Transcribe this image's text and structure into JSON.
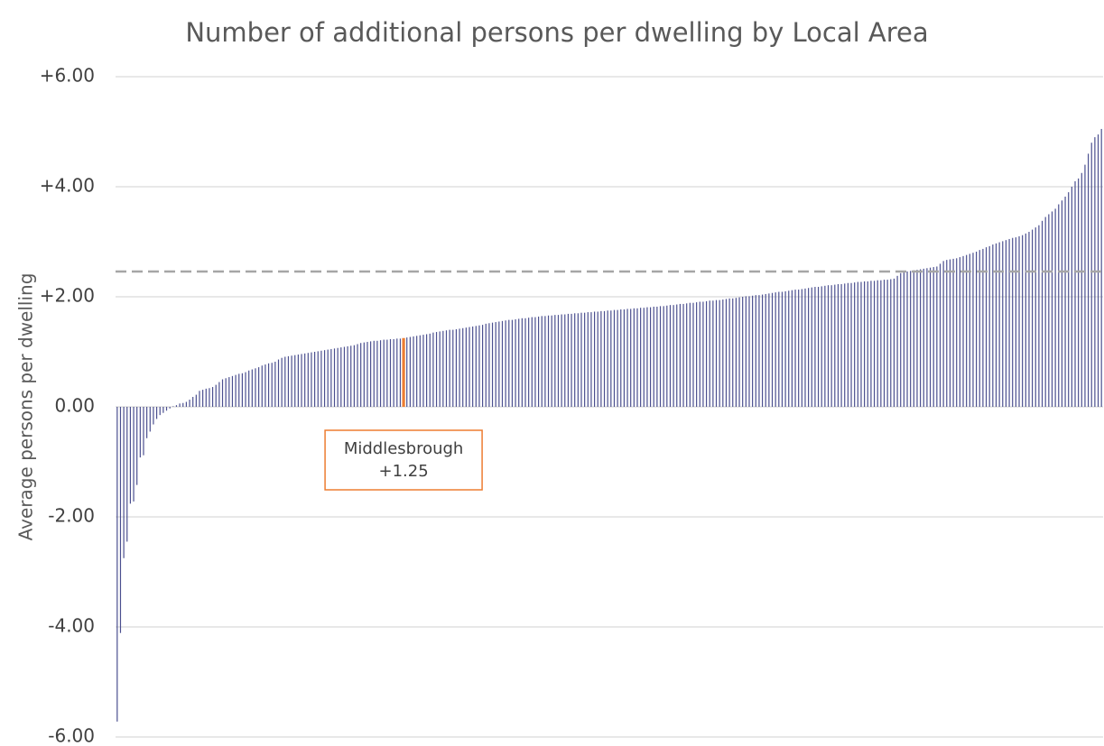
{
  "chart_data": {
    "type": "bar",
    "title": "Number of additional persons per dwelling by Local Area",
    "y_label": "Average persons per dwelling",
    "color": "#4b4f8f",
    "highlight": {
      "index": 87,
      "color": "#ed7d31",
      "text": "Middlesbrough",
      "value_label": "+1.25"
    },
    "reference_line": {
      "value": 2.46,
      "color": "#a6a6a6",
      "style": "dashed"
    },
    "ylim": [
      -6,
      6
    ],
    "yticks": [
      {
        "value": 6,
        "label": "+6.00"
      },
      {
        "value": 4,
        "label": "+4.00"
      },
      {
        "value": 2,
        "label": "+2.00"
      },
      {
        "value": 0,
        "label": "0.00"
      },
      {
        "value": -2,
        "label": "-2.00"
      },
      {
        "value": -4,
        "label": "-4.00"
      },
      {
        "value": -6,
        "label": "-6.00"
      }
    ],
    "grid": true,
    "values": [
      -5.72,
      -4.11,
      -2.75,
      -2.45,
      -1.76,
      -1.72,
      -1.42,
      -0.92,
      -0.88,
      -0.57,
      -0.45,
      -0.32,
      -0.22,
      -0.15,
      -0.11,
      -0.07,
      -0.03,
      0.01,
      0.03,
      0.06,
      0.07,
      0.09,
      0.13,
      0.18,
      0.22,
      0.29,
      0.31,
      0.33,
      0.34,
      0.36,
      0.4,
      0.45,
      0.5,
      0.52,
      0.54,
      0.56,
      0.58,
      0.6,
      0.61,
      0.63,
      0.66,
      0.68,
      0.7,
      0.72,
      0.75,
      0.77,
      0.79,
      0.8,
      0.82,
      0.86,
      0.89,
      0.91,
      0.92,
      0.93,
      0.94,
      0.95,
      0.96,
      0.97,
      0.98,
      0.99,
      1.0,
      1.01,
      1.02,
      1.03,
      1.04,
      1.05,
      1.06,
      1.07,
      1.08,
      1.09,
      1.1,
      1.11,
      1.12,
      1.14,
      1.16,
      1.17,
      1.18,
      1.19,
      1.2,
      1.2,
      1.21,
      1.22,
      1.22,
      1.23,
      1.23,
      1.24,
      1.24,
      1.25,
      1.26,
      1.27,
      1.28,
      1.29,
      1.3,
      1.31,
      1.32,
      1.33,
      1.35,
      1.36,
      1.37,
      1.38,
      1.39,
      1.4,
      1.4,
      1.41,
      1.42,
      1.43,
      1.44,
      1.45,
      1.46,
      1.47,
      1.48,
      1.49,
      1.51,
      1.52,
      1.53,
      1.54,
      1.55,
      1.56,
      1.57,
      1.58,
      1.58,
      1.59,
      1.6,
      1.61,
      1.61,
      1.62,
      1.63,
      1.63,
      1.64,
      1.65,
      1.65,
      1.66,
      1.66,
      1.67,
      1.67,
      1.68,
      1.68,
      1.69,
      1.69,
      1.7,
      1.7,
      1.71,
      1.71,
      1.72,
      1.72,
      1.73,
      1.73,
      1.74,
      1.74,
      1.75,
      1.75,
      1.76,
      1.76,
      1.77,
      1.77,
      1.78,
      1.78,
      1.79,
      1.79,
      1.8,
      1.8,
      1.81,
      1.81,
      1.82,
      1.82,
      1.83,
      1.83,
      1.84,
      1.85,
      1.85,
      1.86,
      1.87,
      1.87,
      1.88,
      1.89,
      1.89,
      1.9,
      1.91,
      1.91,
      1.92,
      1.93,
      1.93,
      1.94,
      1.94,
      1.95,
      1.96,
      1.97,
      1.97,
      1.98,
      1.99,
      2.0,
      2.01,
      2.01,
      2.02,
      2.03,
      2.03,
      2.04,
      2.05,
      2.06,
      2.07,
      2.08,
      2.09,
      2.09,
      2.1,
      2.11,
      2.12,
      2.13,
      2.13,
      2.14,
      2.15,
      2.16,
      2.17,
      2.18,
      2.18,
      2.19,
      2.2,
      2.21,
      2.21,
      2.22,
      2.23,
      2.23,
      2.24,
      2.25,
      2.25,
      2.26,
      2.27,
      2.27,
      2.28,
      2.28,
      2.29,
      2.29,
      2.3,
      2.3,
      2.31,
      2.31,
      2.32,
      2.33,
      2.38,
      2.43,
      2.45,
      2.46,
      2.47,
      2.48,
      2.49,
      2.5,
      2.51,
      2.52,
      2.53,
      2.54,
      2.55,
      2.6,
      2.65,
      2.67,
      2.68,
      2.69,
      2.7,
      2.72,
      2.74,
      2.76,
      2.78,
      2.8,
      2.82,
      2.85,
      2.87,
      2.9,
      2.92,
      2.95,
      2.97,
      2.99,
      3.01,
      3.03,
      3.05,
      3.07,
      3.08,
      3.1,
      3.12,
      3.15,
      3.18,
      3.22,
      3.26,
      3.3,
      3.38,
      3.45,
      3.5,
      3.55,
      3.6,
      3.68,
      3.75,
      3.82,
      3.9,
      4.0,
      4.1,
      4.15,
      4.25,
      4.4,
      4.6,
      4.8,
      4.9,
      4.95,
      5.05
    ]
  }
}
